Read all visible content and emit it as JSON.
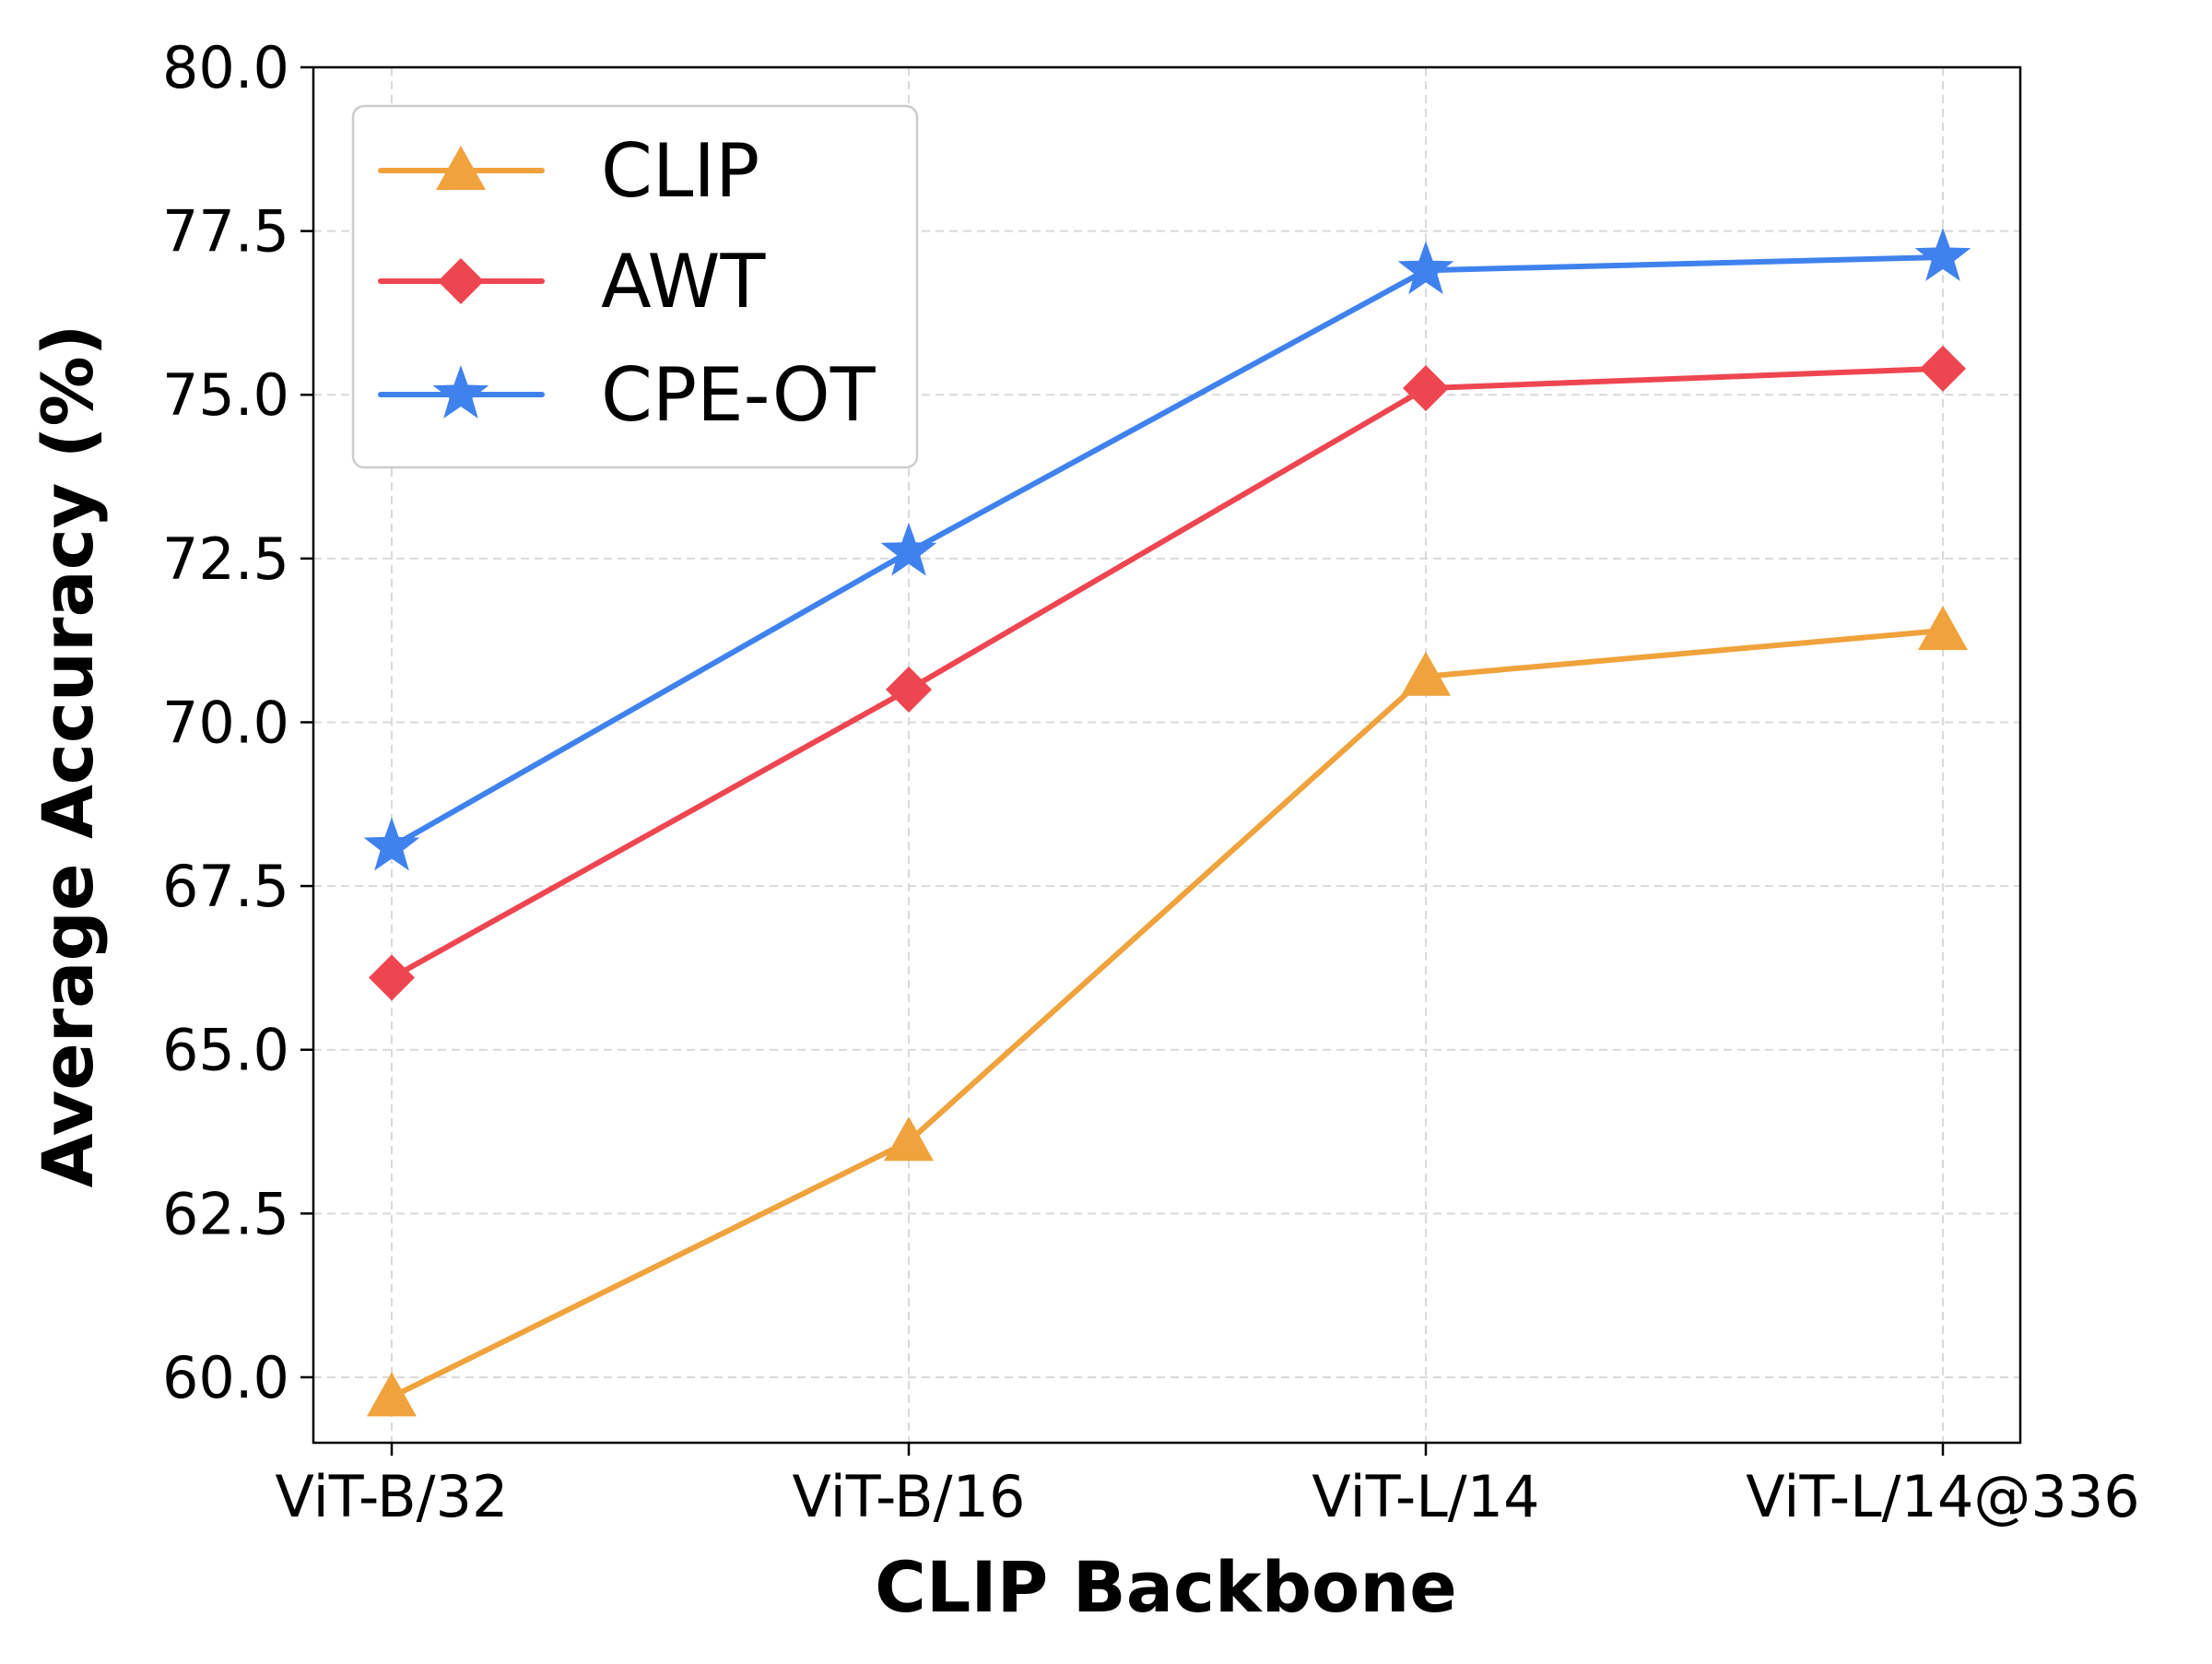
{
  "chart_data": {
    "type": "line",
    "title": "",
    "xlabel": "CLIP Backbone",
    "ylabel": "Average Accuracy (%)",
    "categories": [
      "ViT-B/32",
      "ViT-B/16",
      "ViT-L/14",
      "ViT-L/14@336"
    ],
    "ylim": [
      59.0,
      80.0
    ],
    "yticks": [
      60.0,
      62.5,
      65.0,
      67.5,
      70.0,
      72.5,
      75.0,
      77.5,
      80.0
    ],
    "ytick_labels": [
      "60.0",
      "62.5",
      "65.0",
      "67.5",
      "70.0",
      "72.5",
      "75.0",
      "77.5",
      "80.0"
    ],
    "grid": true,
    "legend_position": "top-left",
    "series": [
      {
        "name": "CLIP",
        "color": "#F0A23C",
        "marker": "triangle",
        "values": [
          59.7,
          63.6,
          70.7,
          71.4
        ]
      },
      {
        "name": "AWT",
        "color": "#EE4650",
        "marker": "diamond",
        "values": [
          66.1,
          70.5,
          75.1,
          75.4
        ]
      },
      {
        "name": "CPE-OT",
        "color": "#3F82EE",
        "marker": "star",
        "values": [
          68.1,
          72.6,
          76.9,
          77.1
        ]
      }
    ]
  }
}
